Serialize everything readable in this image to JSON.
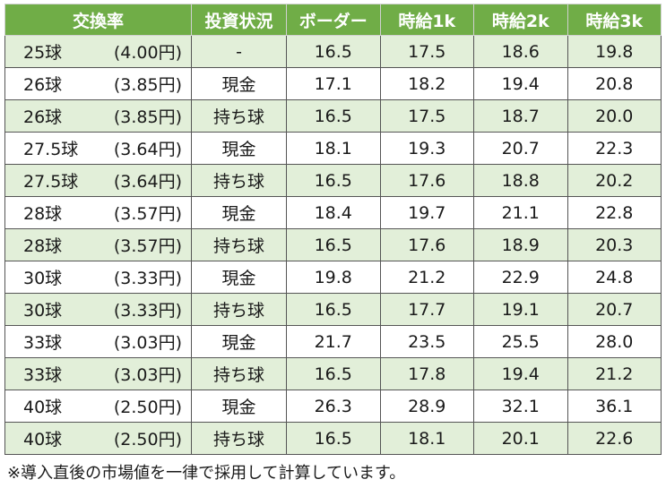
{
  "table": {
    "headers": [
      "交換率",
      "投資状況",
      "ボーダー",
      "時給1k",
      "時給2k",
      "時給3k"
    ],
    "rows": [
      {
        "balls": "25球",
        "yen": "(4.00円)",
        "type": "-",
        "border": "16.5",
        "h1k": "17.5",
        "h2k": "18.6",
        "h3k": "19.8"
      },
      {
        "balls": "26球",
        "yen": "(3.85円)",
        "type": "現金",
        "border": "17.1",
        "h1k": "18.2",
        "h2k": "19.4",
        "h3k": "20.8"
      },
      {
        "balls": "26球",
        "yen": "(3.85円)",
        "type": "持ち球",
        "border": "16.5",
        "h1k": "17.5",
        "h2k": "18.7",
        "h3k": "20.0"
      },
      {
        "balls": "27.5球",
        "yen": "(3.64円)",
        "type": "現金",
        "border": "18.1",
        "h1k": "19.3",
        "h2k": "20.7",
        "h3k": "22.3"
      },
      {
        "balls": "27.5球",
        "yen": "(3.64円)",
        "type": "持ち球",
        "border": "16.5",
        "h1k": "17.6",
        "h2k": "18.8",
        "h3k": "20.2"
      },
      {
        "balls": "28球",
        "yen": "(3.57円)",
        "type": "現金",
        "border": "18.4",
        "h1k": "19.7",
        "h2k": "21.1",
        "h3k": "22.8"
      },
      {
        "balls": "28球",
        "yen": "(3.57円)",
        "type": "持ち球",
        "border": "16.5",
        "h1k": "17.6",
        "h2k": "18.9",
        "h3k": "20.3"
      },
      {
        "balls": "30球",
        "yen": "(3.33円)",
        "type": "現金",
        "border": "19.8",
        "h1k": "21.2",
        "h2k": "22.9",
        "h3k": "24.8"
      },
      {
        "balls": "30球",
        "yen": "(3.33円)",
        "type": "持ち球",
        "border": "16.5",
        "h1k": "17.7",
        "h2k": "19.1",
        "h3k": "20.7"
      },
      {
        "balls": "33球",
        "yen": "(3.03円)",
        "type": "現金",
        "border": "21.7",
        "h1k": "23.5",
        "h2k": "25.5",
        "h3k": "28.0"
      },
      {
        "balls": "33球",
        "yen": "(3.03円)",
        "type": "持ち球",
        "border": "16.5",
        "h1k": "17.8",
        "h2k": "19.4",
        "h3k": "21.2"
      },
      {
        "balls": "40球",
        "yen": "(2.50円)",
        "type": "現金",
        "border": "26.3",
        "h1k": "28.9",
        "h2k": "32.1",
        "h3k": "36.1"
      },
      {
        "balls": "40球",
        "yen": "(2.50円)",
        "type": "持ち球",
        "border": "16.5",
        "h1k": "18.1",
        "h2k": "20.1",
        "h3k": "22.6"
      }
    ]
  },
  "footnote": "※導入直後の市場値を一律で採用して計算しています。",
  "colors": {
    "header_bg": "#70ad47",
    "header_text": "#ffffff",
    "alt_row_bg": "#e2efd9"
  }
}
